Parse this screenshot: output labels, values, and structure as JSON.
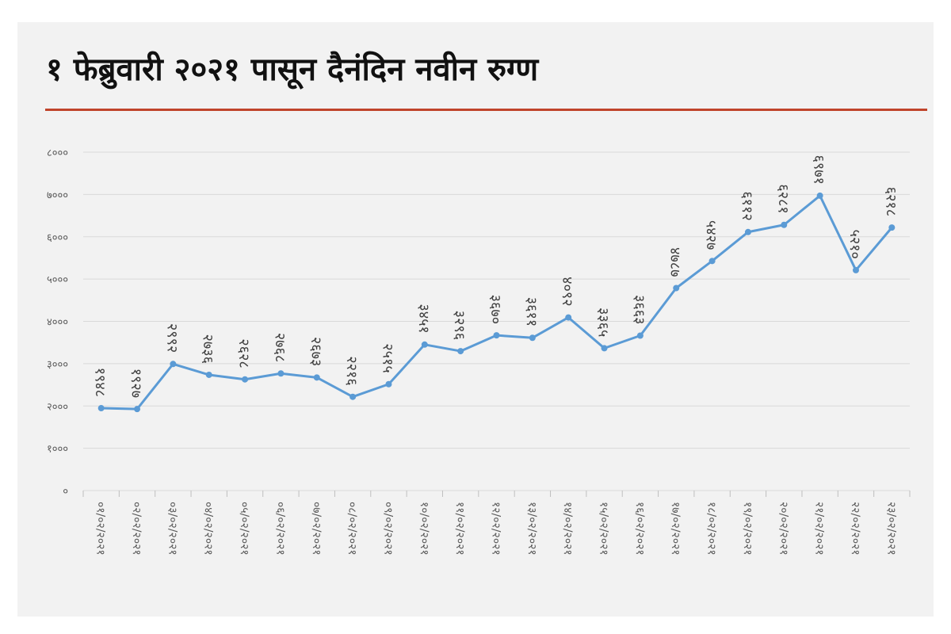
{
  "title": "१ फेब्रुवारी २०२१ पासून दैनंदिन नवीन रुग्ण",
  "colors": {
    "line": "#5b9bd5",
    "rule": "#c0442b",
    "grid": "#d9d9d9",
    "background": "#f2f2f2"
  },
  "chart_data": {
    "type": "line",
    "title": "१ फेब्रुवारी २०२१ पासून दैनंदिन नवीन रुग्ण",
    "xlabel": "",
    "ylabel": "",
    "ylim": [
      0,
      8000
    ],
    "grid": true,
    "legend": "none",
    "yticks": [
      0,
      1000,
      2000,
      3000,
      4000,
      5000,
      6000,
      7000,
      8000
    ],
    "yticklabels": [
      "०",
      "१०००",
      "२०००",
      "३०००",
      "४०००",
      "५०००",
      "६०००",
      "७०००",
      "८०००"
    ],
    "categories": [
      "०१/०२/२०२१",
      "०२/०२/२०२१",
      "०३/०२/२०२१",
      "०४/०२/२०२१",
      "०५/०२/२०२१",
      "०६/०२/२०२१",
      "०७/०२/२०२१",
      "०८/०२/२०२१",
      "०९/०२/२०२१",
      "१०/०२/२०२१",
      "११/०२/२०२१",
      "१२/०२/२०२१",
      "१३/०२/२०२१",
      "१४/०२/२०२१",
      "१५/०२/२०२१",
      "१६/०२/२०२१",
      "१७/०२/२०२१",
      "१८/०२/२०२१",
      "१९/०२/२०२१",
      "२०/०२/२०२१",
      "२१/०२/२०२१",
      "२२/०२/२०२१",
      "२३/०२/२०२१"
    ],
    "values": [
      1948,
      1927,
      2992,
      2736,
      2628,
      2768,
      2673,
      2216,
      2515,
      3451,
      3296,
      3670,
      3611,
      4092,
      3365,
      3663,
      4787,
      5427,
      6112,
      6281,
      6971,
      5210,
      6218
    ],
    "value_labels": [
      "१९४८",
      "१९२७",
      "२९९२",
      "२७३६",
      "२६२८",
      "२७६८",
      "२६७३",
      "२२१६",
      "२५१५",
      "३४५१",
      "३२९६",
      "३६७०",
      "३६११",
      "४०९२",
      "३३६५",
      "३६६३",
      "४७८७",
      "५४२७",
      "६११२",
      "६२८१",
      "६९७१",
      "५२१०",
      "६२१८"
    ]
  }
}
